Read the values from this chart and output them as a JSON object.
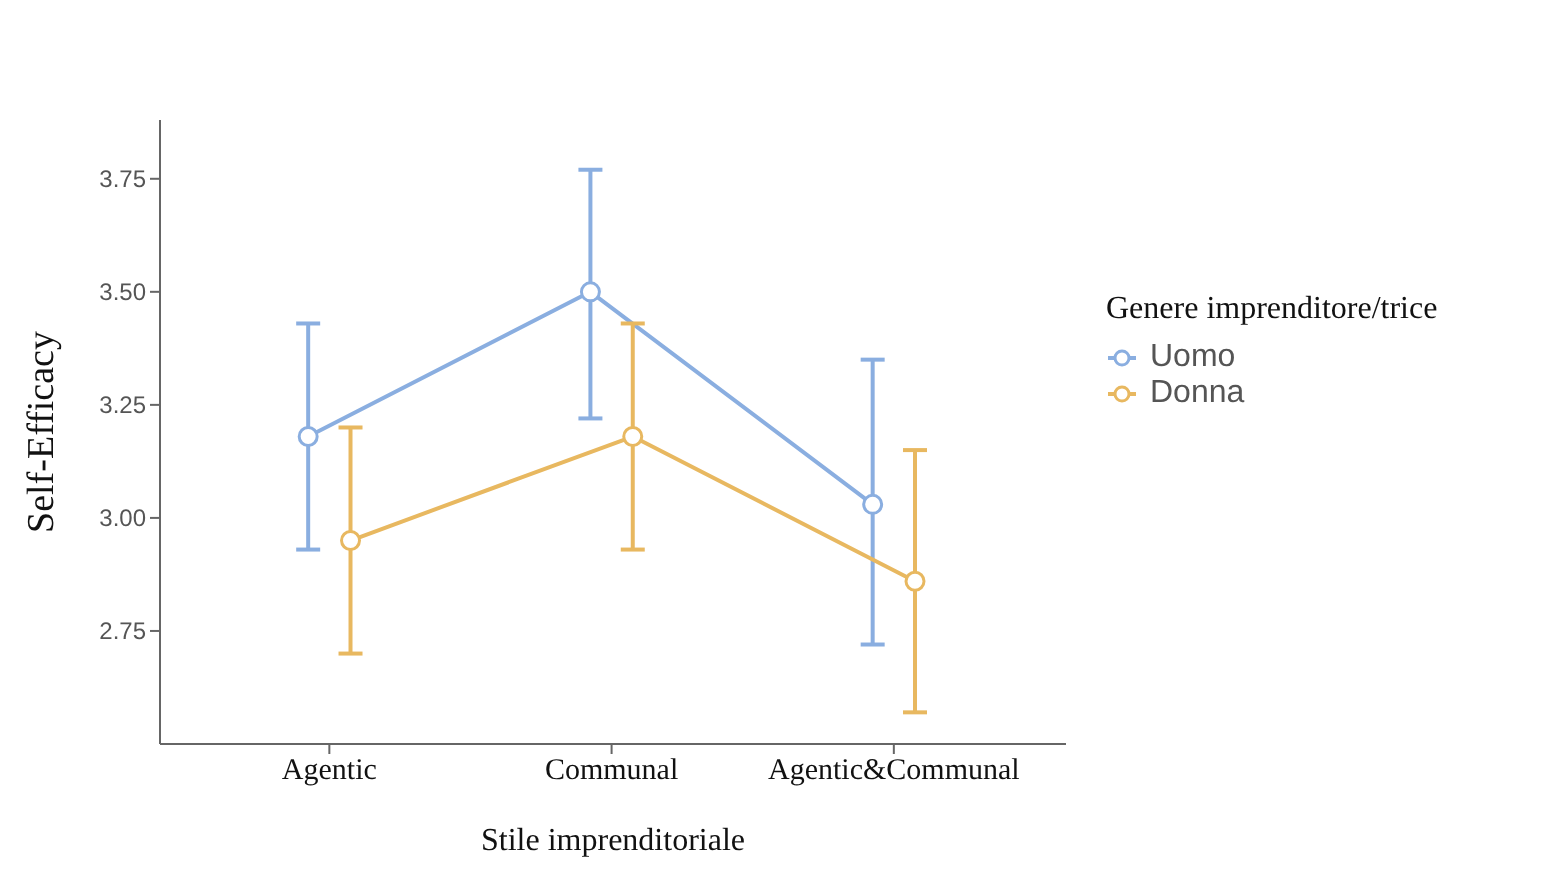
{
  "chart_data": {
    "type": "line",
    "xlabel": "Stile imprenditoriale",
    "ylabel": "Self-Efficacy",
    "legend_title": "Genere imprenditore/trice",
    "categories": [
      "Agentic",
      "Communal",
      "Agentic&Communal"
    ],
    "series": [
      {
        "name": "Uomo",
        "color": "#8aaee0",
        "values": [
          3.18,
          3.5,
          3.03
        ],
        "errors": [
          [
            2.93,
            3.43
          ],
          [
            3.22,
            3.77
          ],
          [
            2.72,
            3.35
          ]
        ]
      },
      {
        "name": "Donna",
        "color": "#e8b860",
        "values": [
          2.95,
          3.18,
          2.86
        ],
        "errors": [
          [
            2.7,
            3.2
          ],
          [
            2.93,
            3.43
          ],
          [
            2.57,
            3.15
          ]
        ]
      }
    ],
    "ylim": [
      2.5,
      3.88
    ],
    "yticks": [
      {
        "value": 2.75,
        "label": "2.75"
      },
      {
        "value": 3,
        "label": "3.00"
      },
      {
        "value": 3.25,
        "label": "3.25"
      },
      {
        "value": 3.5,
        "label": "3.50"
      },
      {
        "value": 3.75,
        "label": "3.75"
      }
    ],
    "grid": false,
    "legend": "right",
    "marker": "circle",
    "line_style": "solid"
  }
}
